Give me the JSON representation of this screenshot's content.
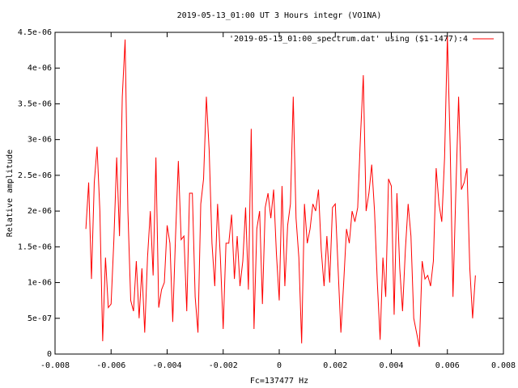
{
  "chart_data": {
    "type": "line",
    "title": "2019-05-13_01:00 UT 3 Hours integr (VO1NA)",
    "x_label": "Fc=137477 Hz",
    "y_label": "Relative amplitude",
    "xlim": [
      -0.008,
      0.008
    ],
    "xticks": [
      -0.008,
      -0.006,
      -0.004,
      -0.002,
      0,
      0.002,
      0.004,
      0.006,
      0.008
    ],
    "ylim": [
      0,
      4.5e-06
    ],
    "yticks": [
      0,
      {
        "value": 5e-07,
        "label": "5e-07"
      },
      {
        "value": 1e-06,
        "label": "1e-06"
      },
      {
        "value": 1.5e-06,
        "label": "1.5e-06"
      },
      {
        "value": 2e-06,
        "label": "2e-06"
      },
      {
        "value": 2.5e-06,
        "label": "2.5e-06"
      },
      {
        "value": 3e-06,
        "label": "3e-06"
      },
      {
        "value": 3.5e-06,
        "label": "3.5e-06"
      },
      {
        "value": 4e-06,
        "label": "4e-06"
      },
      {
        "value": 4.5e-06,
        "label": "4.5e-06"
      }
    ],
    "legend": "top-right",
    "x": [
      -0.0069,
      -0.0068,
      -0.0067,
      -0.0066,
      -0.0065,
      -0.0064,
      -0.0063,
      -0.0062,
      -0.0061,
      -0.006,
      -0.0059,
      -0.0058,
      -0.0057,
      -0.0056,
      -0.0055,
      -0.0054,
      -0.0053,
      -0.0052,
      -0.0051,
      -0.005,
      -0.0049,
      -0.0048,
      -0.0047,
      -0.0046,
      -0.0045,
      -0.0044,
      -0.0043,
      -0.0042,
      -0.0041,
      -0.004,
      -0.0039,
      -0.0038,
      -0.0037,
      -0.0036,
      -0.0035,
      -0.0034,
      -0.0033,
      -0.0032,
      -0.0031,
      -0.003,
      -0.0029,
      -0.0028,
      -0.0027,
      -0.0026,
      -0.0025,
      -0.0024,
      -0.0023,
      -0.0022,
      -0.0021,
      -0.002,
      -0.0019,
      -0.0018,
      -0.0017,
      -0.0016,
      -0.0015,
      -0.0014,
      -0.0013,
      -0.0012,
      -0.0011,
      -0.001,
      -0.0009,
      -0.0008,
      -0.0007,
      -0.0006,
      -0.0005,
      -0.0004,
      -0.0003,
      -0.0002,
      -0.0001,
      0,
      0.0001,
      0.0002,
      0.0003,
      0.0004,
      0.0005,
      0.0006,
      0.0007,
      0.0008,
      0.0009,
      0.001,
      0.0011,
      0.0012,
      0.0013,
      0.0014,
      0.0015,
      0.0016,
      0.0017,
      0.0018,
      0.0019,
      0.002,
      0.0021,
      0.0022,
      0.0023,
      0.0024,
      0.0025,
      0.0026,
      0.0027,
      0.0028,
      0.0029,
      0.003,
      0.0031,
      0.0032,
      0.0033,
      0.0034,
      0.0035,
      0.0036,
      0.0037,
      0.0038,
      0.0039,
      0.004,
      0.0041,
      0.0042,
      0.0043,
      0.0044,
      0.0045,
      0.0046,
      0.0047,
      0.0048,
      0.0049,
      0.005,
      0.0051,
      0.0052,
      0.0053,
      0.0054,
      0.0055,
      0.0056,
      0.0057,
      0.0058,
      0.0059,
      0.006,
      0.0061,
      0.0062,
      0.0063,
      0.0064,
      0.0065,
      0.0066,
      0.0067,
      0.0068,
      0.0069,
      0.007
    ],
    "series": [
      {
        "name": "'2019-05-13_01:00_spectrum.dat' using ($1-1477):4",
        "color": "#ff0000",
        "values": [
          1.75e-06,
          2.4e-06,
          1.05e-06,
          2.4e-06,
          2.9e-06,
          2e-06,
          1.8e-07,
          1.35e-06,
          6.5e-07,
          7e-07,
          1.6e-06,
          2.75e-06,
          1.65e-06,
          3.6e-06,
          4.4e-06,
          2e-06,
          7.5e-07,
          6e-07,
          1.3e-06,
          5e-07,
          1.2e-06,
          3e-07,
          1.35e-06,
          2e-06,
          1.1e-06,
          2.75e-06,
          6.5e-07,
          9e-07,
          1e-06,
          1.8e-06,
          1.55e-06,
          4.5e-07,
          1.65e-06,
          2.7e-06,
          1.6e-06,
          1.65e-06,
          6e-07,
          2.25e-06,
          2.25e-06,
          8e-07,
          3e-07,
          2.1e-06,
          2.45e-06,
          3.6e-06,
          2.85e-06,
          1.55e-06,
          9.5e-07,
          2.1e-06,
          1.35e-06,
          3.5e-07,
          1.55e-06,
          1.55e-06,
          1.95e-06,
          1.05e-06,
          1.65e-06,
          9.5e-07,
          1.3e-06,
          2.05e-06,
          9e-07,
          3.15e-06,
          3.5e-07,
          1.75e-06,
          2e-06,
          7e-07,
          2.05e-06,
          2.25e-06,
          1.9e-06,
          2.3e-06,
          1.4e-06,
          7.5e-07,
          2.35e-06,
          9.5e-07,
          1.8e-06,
          2.1e-06,
          3.6e-06,
          1.9e-06,
          1.35e-06,
          1.5e-07,
          2.1e-06,
          1.55e-06,
          1.75e-06,
          2.1e-06,
          2e-06,
          2.3e-06,
          1.45e-06,
          9.5e-07,
          1.65e-06,
          1e-06,
          2.05e-06,
          2.1e-06,
          1.2e-06,
          3e-07,
          1e-06,
          1.75e-06,
          1.55e-06,
          2e-06,
          1.85e-06,
          2.05e-06,
          3.05e-06,
          3.9e-06,
          2e-06,
          2.25e-06,
          2.65e-06,
          2e-06,
          1e-06,
          2e-07,
          1.35e-06,
          8e-07,
          2.45e-06,
          2.35e-06,
          5.5e-07,
          2.25e-06,
          1.2e-06,
          6e-07,
          1.45e-06,
          2.1e-06,
          1.65e-06,
          5e-07,
          3e-07,
          1e-07,
          1.3e-06,
          1.05e-06,
          1.1e-06,
          9.5e-07,
          1.3e-06,
          2.6e-06,
          2.1e-06,
          1.85e-06,
          2.75e-06,
          4.45e-06,
          2.9e-06,
          8e-07,
          2.25e-06,
          3.6e-06,
          2.3e-06,
          2.4e-06,
          2.6e-06,
          1.2e-06,
          5e-07,
          1.1e-06
        ]
      }
    ]
  }
}
